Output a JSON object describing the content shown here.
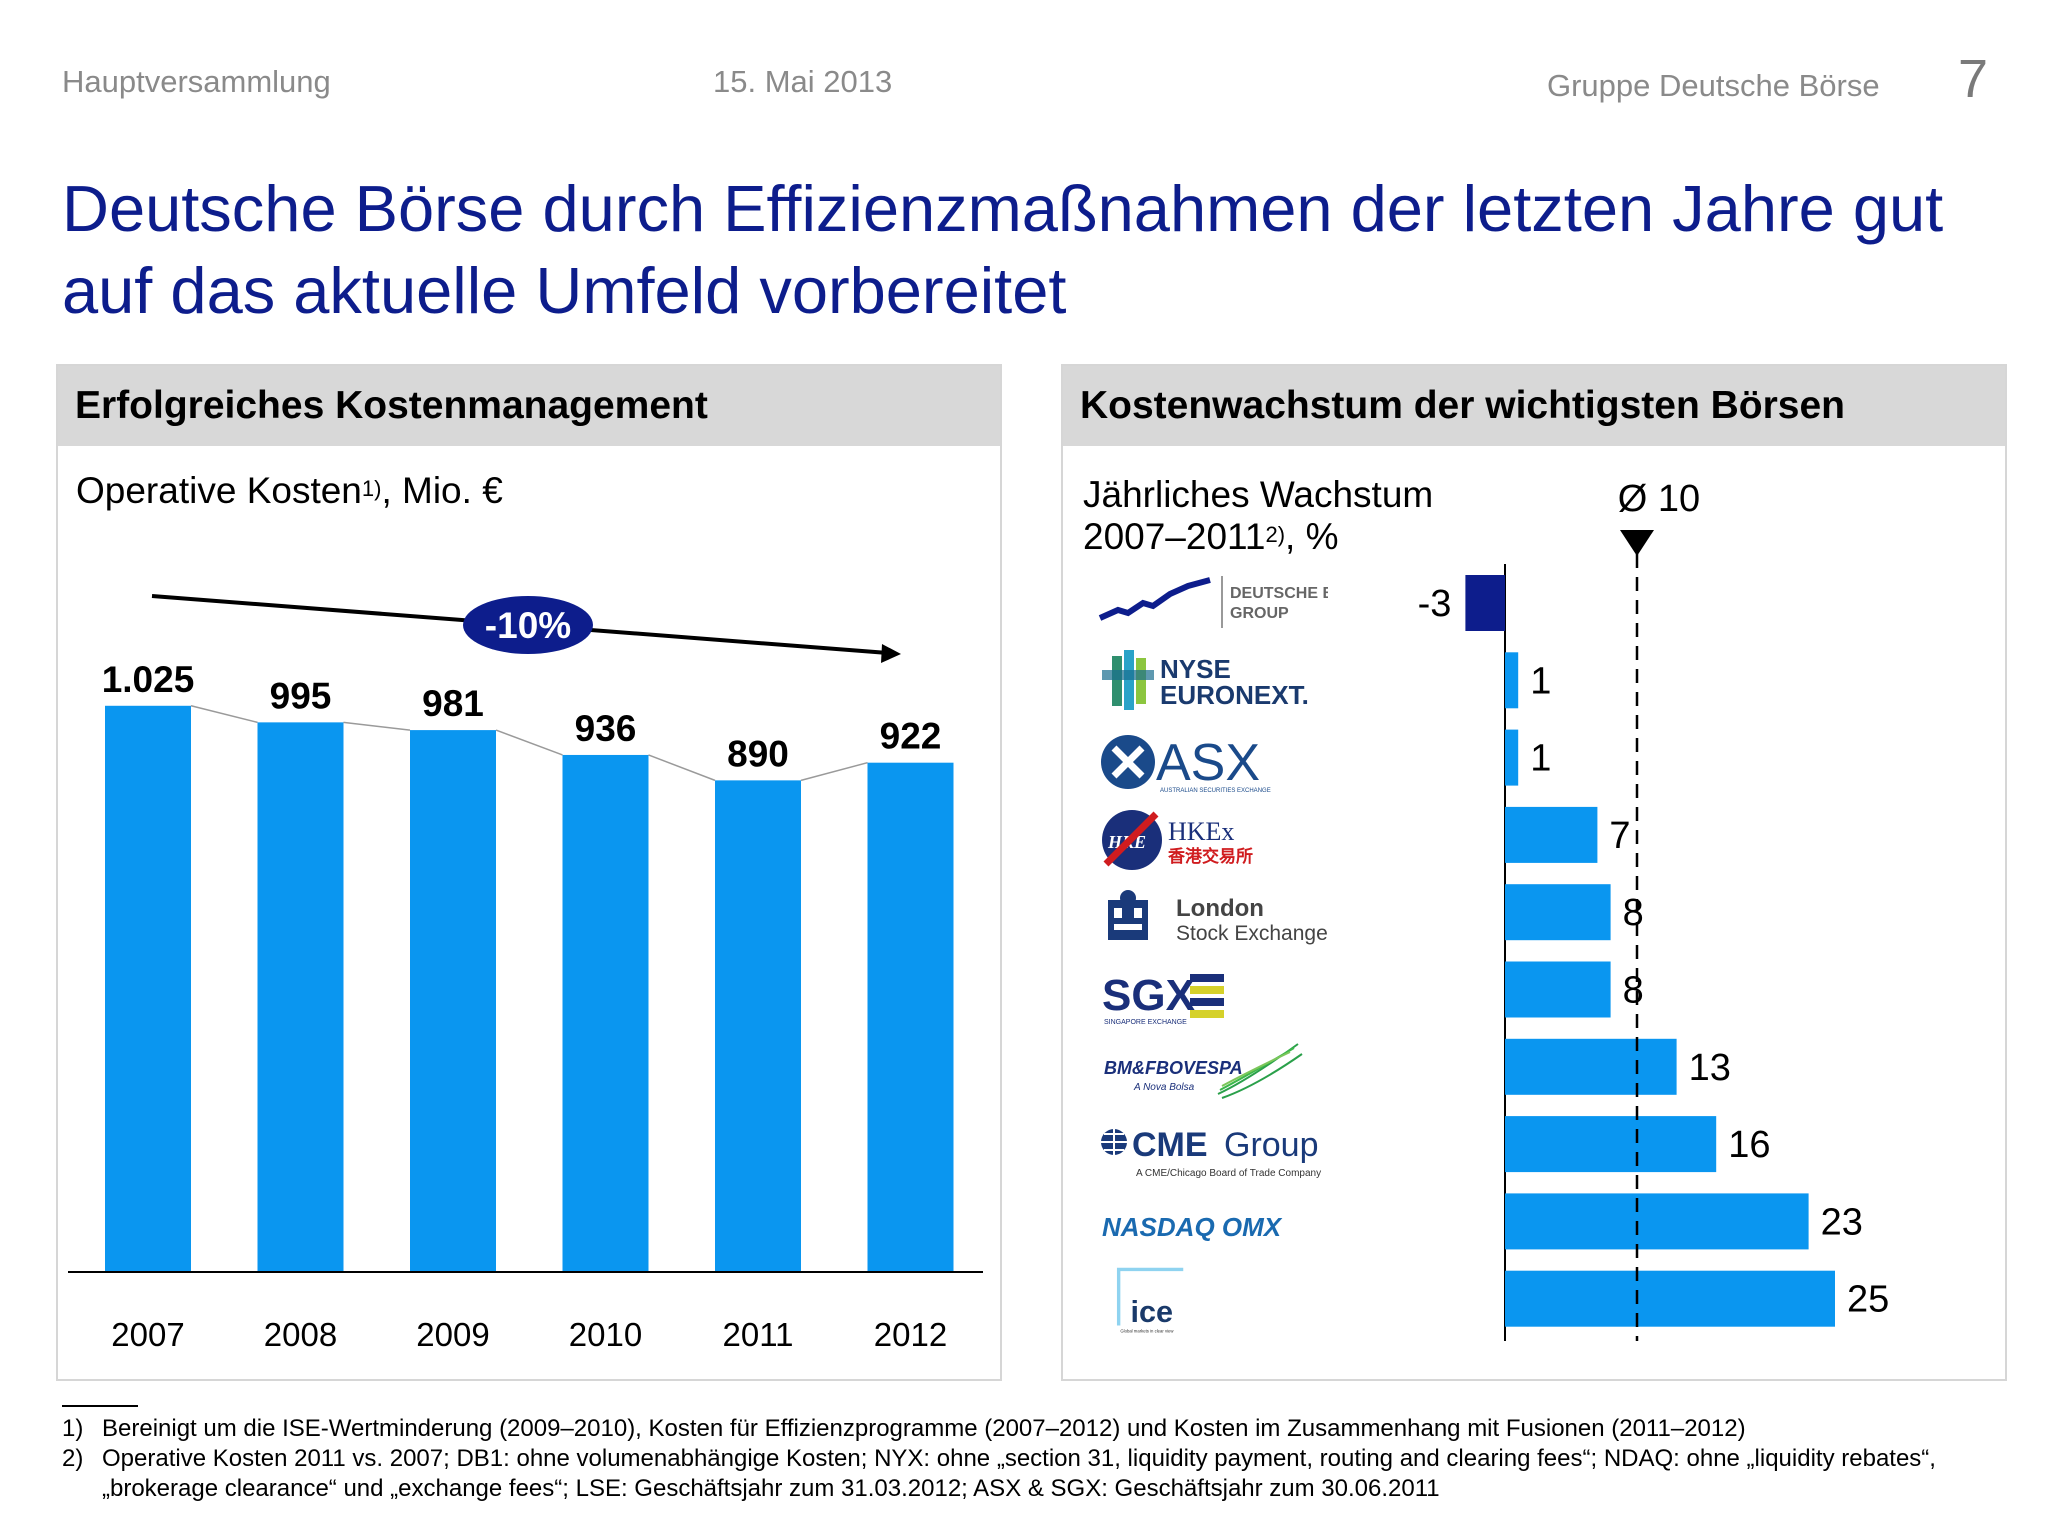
{
  "header": {
    "left": "Hauptversammlung",
    "date": "15. Mai 2013",
    "right": "Gruppe Deutsche Börse",
    "page_number": "7"
  },
  "title": "Deutsche Börse durch Effizienzmaßnahmen der letzten Jahre gut auf das aktuelle Umfeld vorbereitet",
  "left_panel": {
    "heading": "Erfolgreiches Kostenmanagement",
    "subtitle_main": "Operative Kosten",
    "subtitle_sup": "1)",
    "subtitle_rest": ", Mio. €",
    "trend_label": "-10%"
  },
  "right_panel": {
    "heading": "Kostenwachstum der wichtigsten Börsen",
    "subtitle_line1": "Jährliches Wachstum",
    "subtitle_line2_main": "2007–2011",
    "subtitle_line2_sup": "2)",
    "subtitle_line2_rest": ", %",
    "average_label": "Ø 10"
  },
  "logos": {
    "deutsche_boerse": [
      "DEUTSCHE BÖRSE",
      "GROUP"
    ],
    "nyse": [
      "NYSE",
      "EURONEXT."
    ],
    "asx": "ASX",
    "asx_small": "AUSTRALIAN SECURITIES EXCHANGE",
    "hkex": [
      "HKEx",
      "香港交易所"
    ],
    "hkex_badge": "HKE",
    "lse": [
      "London",
      "Stock Exchange"
    ],
    "sgx": "SGX",
    "sgx_small": "SINGAPORE EXCHANGE",
    "bmf": "BM&FBOVESPA",
    "bmf_small": "A Nova Bolsa",
    "cme": [
      "CME",
      "Group"
    ],
    "cme_small": "A CME/Chicago Board of Trade Company",
    "nasdaq": "NASDAQ OMX",
    "ice": "ice",
    "ice_small": "Global markets in clear view"
  },
  "colors": {
    "bar_blue": "#0a96f0",
    "highlight_navy": "#0d1d8c",
    "title_blue": "#0d1d8c"
  },
  "chart_data": [
    {
      "type": "bar",
      "categories": [
        "2007",
        "2008",
        "2009",
        "2010",
        "2011",
        "2012"
      ],
      "values": [
        1025,
        995,
        981,
        936,
        890,
        922
      ],
      "value_labels": [
        "1.025",
        "995",
        "981",
        "936",
        "890",
        "922"
      ],
      "ylim": [
        0,
        1025
      ],
      "annotation": "-10%"
    },
    {
      "type": "bar",
      "orientation": "horizontal",
      "categories": [
        "Deutsche Börse Group",
        "NYSE Euronext",
        "ASX",
        "HKEx",
        "London Stock Exchange",
        "SGX",
        "BM&FBOVESPA",
        "CME Group",
        "NASDAQ OMX",
        "ICE"
      ],
      "values": [
        -3,
        1,
        1,
        7,
        8,
        8,
        13,
        16,
        23,
        25
      ],
      "value_labels": [
        "-3",
        "1",
        "1",
        "7",
        "8",
        "8",
        "13",
        "16",
        "23",
        "25"
      ],
      "reference_line": 10,
      "reference_label": "Ø 10"
    }
  ],
  "footnotes": [
    {
      "num": "1)",
      "text": "Bereinigt um die ISE-Wertminderung (2009–2010), Kosten für Effizienzprogramme (2007–2012) und Kosten im Zusammenhang mit Fusionen (2011–2012)"
    },
    {
      "num": "2)",
      "text": "Operative Kosten 2011 vs. 2007; DB1: ohne volumenabhängige Kosten; NYX: ohne „section 31, liquidity payment, routing and clearing fees“; NDAQ: ohne „liquidity rebates“, „brokerage clearance“ und „exchange fees“; LSE: Geschäftsjahr zum 31.03.2012; ASX & SGX: Geschäftsjahr zum 30.06.2011"
    }
  ]
}
